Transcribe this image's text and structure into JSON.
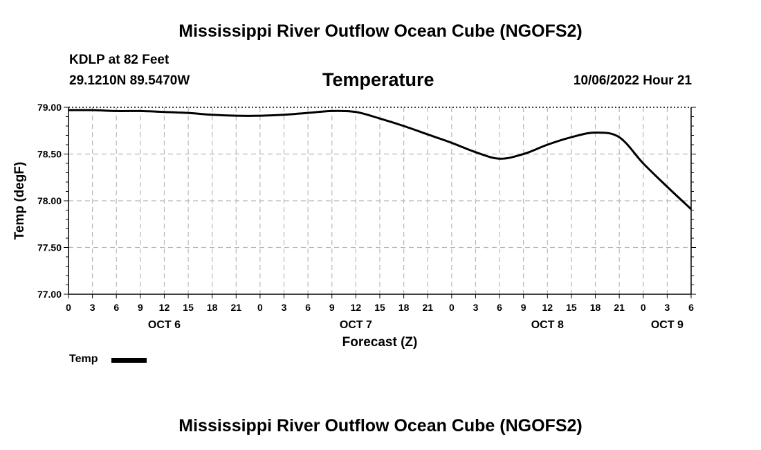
{
  "header": {
    "title": "Mississippi River Outflow Ocean Cube (NGOFS2)",
    "station": "KDLP at 82 Feet",
    "coords": "29.1210N  89.5470W",
    "panel_title": "Temperature",
    "timestamp": "10/06/2022 Hour 21"
  },
  "footer": {
    "title": "Mississippi River Outflow Ocean Cube (NGOFS2)"
  },
  "legend": {
    "label": "Temp"
  },
  "chart_data": {
    "type": "line",
    "title": "Temperature",
    "xlabel": "Forecast (Z)",
    "ylabel": "Temp (degF)",
    "ylim": [
      77.0,
      79.0
    ],
    "xlim_hours": [
      0,
      78
    ],
    "y_ticks": [
      "77.00",
      "77.50",
      "78.00",
      "78.50",
      "79.00"
    ],
    "x_tick_hours": [
      0,
      3,
      6,
      9,
      12,
      15,
      18,
      21,
      24,
      27,
      30,
      33,
      36,
      39,
      42,
      45,
      48,
      51,
      54,
      57,
      60,
      63,
      66,
      69,
      72,
      75,
      78
    ],
    "x_tick_labels": [
      "0",
      "3",
      "6",
      "9",
      "12",
      "15",
      "18",
      "21",
      "0",
      "3",
      "6",
      "9",
      "12",
      "15",
      "18",
      "21",
      "0",
      "3",
      "6",
      "9",
      "12",
      "15",
      "18",
      "21",
      "0",
      "3",
      "6"
    ],
    "day_labels": [
      {
        "label": "OCT 6",
        "hour": 12
      },
      {
        "label": "OCT 7",
        "hour": 36
      },
      {
        "label": "OCT 8",
        "hour": 60
      },
      {
        "label": "OCT 9",
        "hour": 75
      }
    ],
    "grid": true,
    "series": [
      {
        "name": "Temp",
        "color": "#000000",
        "x_hours": [
          0,
          3,
          6,
          9,
          12,
          15,
          18,
          21,
          24,
          27,
          30,
          33,
          36,
          39,
          42,
          45,
          48,
          51,
          54,
          57,
          60,
          63,
          66,
          69,
          72,
          75,
          78
        ],
        "values": [
          78.97,
          78.97,
          78.96,
          78.96,
          78.95,
          78.94,
          78.92,
          78.91,
          78.91,
          78.92,
          78.94,
          78.96,
          78.95,
          78.88,
          78.8,
          78.71,
          78.62,
          78.52,
          78.45,
          78.5,
          78.6,
          78.68,
          78.73,
          78.68,
          78.4,
          78.15,
          77.91
        ]
      }
    ]
  }
}
